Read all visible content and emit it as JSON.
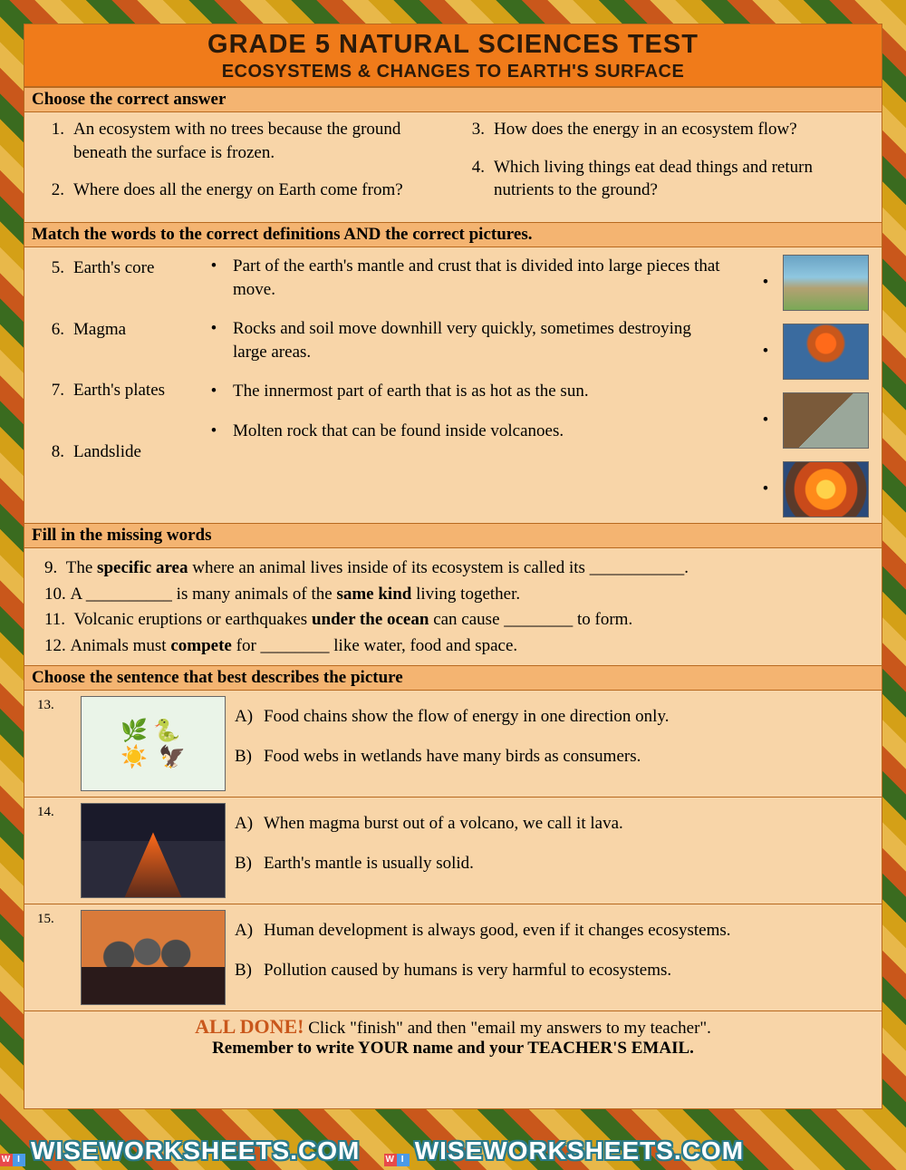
{
  "header": {
    "title": "GRADE 5 NATURAL SCIENCES TEST",
    "subtitle": "ECOSYSTEMS & CHANGES TO EARTH'S SURFACE"
  },
  "section1": {
    "heading": "Choose the correct answer",
    "questions": [
      {
        "n": "1.",
        "text": "An ecosystem with no trees because the ground beneath the surface is frozen."
      },
      {
        "n": "2.",
        "text": "Where does all the energy on Earth come from?"
      },
      {
        "n": "3.",
        "text": "How does the energy in an ecosystem flow?"
      },
      {
        "n": "4.",
        "text": "Which living things eat dead things and return nutrients to the ground?"
      }
    ]
  },
  "section2": {
    "heading": "Match the words to the correct definitions AND the correct pictures.",
    "terms": [
      {
        "n": "5.",
        "text": "Earth's core"
      },
      {
        "n": "6.",
        "text": "Magma"
      },
      {
        "n": "7.",
        "text": "Earth's plates"
      },
      {
        "n": "8.",
        "text": "Landslide"
      }
    ],
    "definitions": [
      "Part of the earth's mantle and crust that is divided into large pieces that move.",
      "Rocks and soil move downhill very quickly, sometimes destroying large areas.",
      "The innermost part of earth that is as hot as the sun.",
      "Molten rock that can be found inside volcanoes."
    ],
    "pictures": [
      "world-map",
      "volcano-cross-section",
      "landslide",
      "earth-core"
    ]
  },
  "section3": {
    "heading": "Fill in the missing words",
    "lines": [
      {
        "n": "9.",
        "pre": "The ",
        "bold": "specific area",
        "post": " where an animal lives inside of its ecosystem is called its ___________."
      },
      {
        "n": "10.",
        "pre": "A __________ is many animals of the ",
        "bold": "same kind",
        "post": " living together."
      },
      {
        "n": "11.",
        "pre": "Volcanic eruptions or earthquakes ",
        "bold": "under the ocean",
        "post": " can cause ________ to form."
      },
      {
        "n": "12.",
        "pre": "Animals must ",
        "bold": "compete",
        "post": " for ________ like water, food and space."
      }
    ]
  },
  "section4": {
    "heading": "Choose the sentence that best describes the picture",
    "items": [
      {
        "n": "13.",
        "img": "food-chain",
        "a": "Food chains show the flow of energy in one direction only.",
        "b": "Food webs in wetlands have many birds as consumers."
      },
      {
        "n": "14.",
        "img": "volcano-erupting",
        "a": "When magma burst out of a volcano, we call it lava.",
        "b": "Earth's mantle is usually solid."
      },
      {
        "n": "15.",
        "img": "pollution-smokestacks",
        "a": "Human development is always good, even if it changes ecosystems.",
        "b": "Pollution caused by humans is very harmful to ecosystems."
      }
    ]
  },
  "footer": {
    "done": "ALL DONE!",
    "line1": " Click \"finish\" and then \"email my answers to my teacher\".",
    "line2": "Remember to write YOUR name and your TEACHER'S EMAIL."
  },
  "watermark": "WISEWORKSHEETS.COM"
}
